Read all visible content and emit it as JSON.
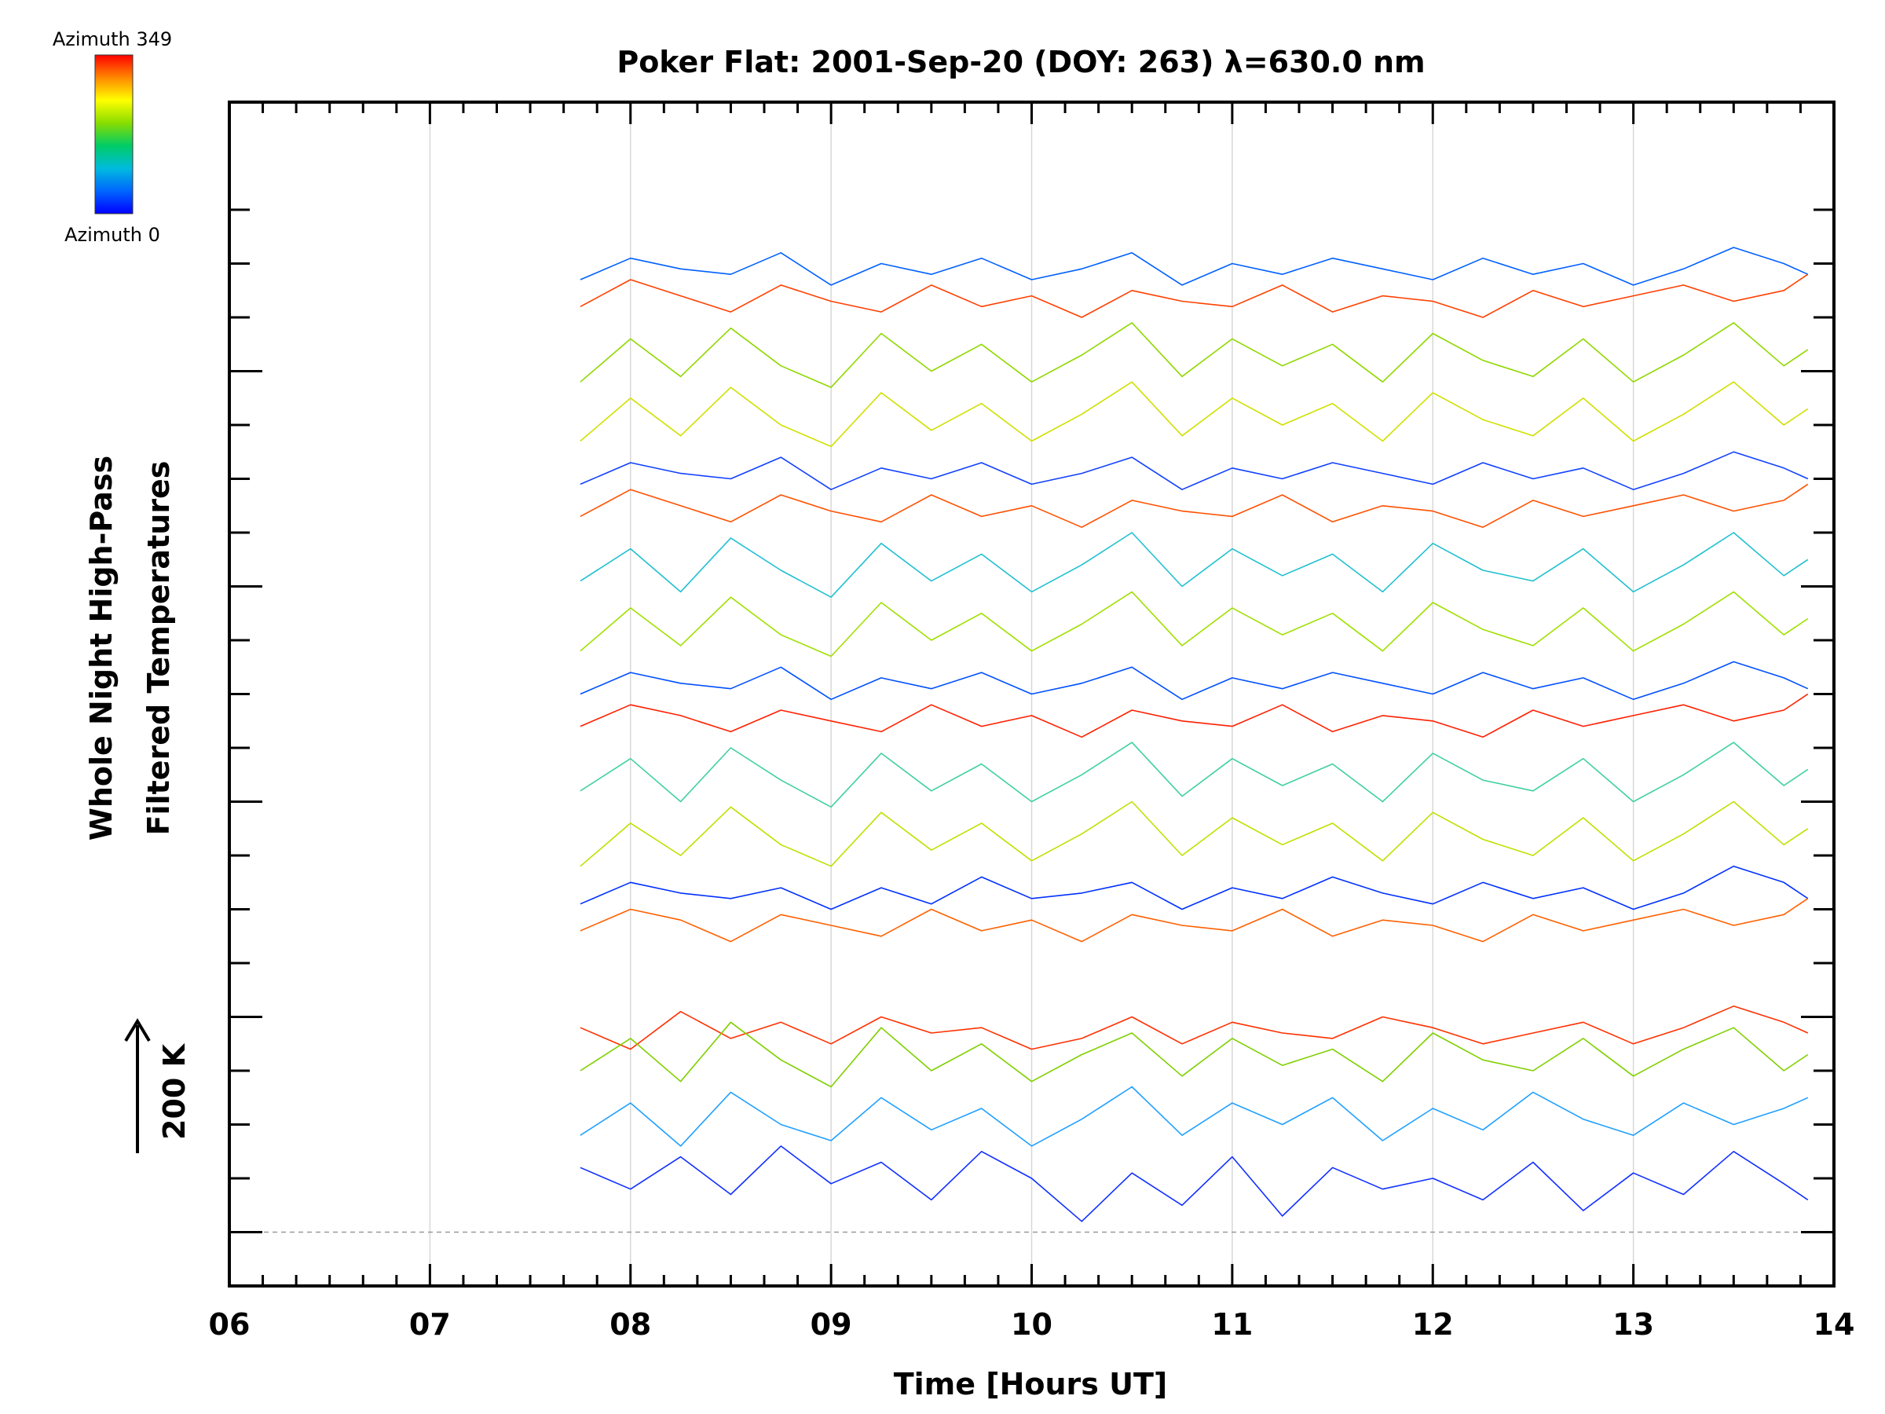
{
  "chart_data": {
    "type": "line",
    "title": "Poker Flat: 2001-Sep-20 (DOY: 263) λ=630.0 nm",
    "xlabel": "Time [Hours UT]",
    "ylabel_line1": "Whole Night High-Pass",
    "ylabel_line2": "Filtered Temperatures",
    "scale_label": "200 K",
    "colorbar": {
      "top_label": "Azimuth 349",
      "bottom_label": "Azimuth 0",
      "colors": [
        "#ff0000",
        "#ff8800",
        "#ffff00",
        "#88dd00",
        "#00cc66",
        "#00bbdd",
        "#0066ff",
        "#0000ff"
      ]
    },
    "xlim": [
      6,
      14
    ],
    "x_ticks": [
      "06",
      "07",
      "08",
      "09",
      "10",
      "11",
      "12",
      "13",
      "14"
    ],
    "grid": true,
    "series_note": "Stacked per-azimuth temperature traces, offset vertically; values are approximate readings.",
    "series": [
      {
        "color": "#1030ff",
        "x": [
          7.75,
          8.0,
          8.25,
          8.5,
          8.75,
          9.0,
          9.25,
          9.5,
          9.75,
          10.0,
          10.25,
          10.5,
          10.75,
          11.0,
          11.25,
          11.5,
          11.75,
          12.0,
          12.25,
          12.5,
          12.75,
          13.0,
          13.25,
          13.5,
          13.75,
          13.87
        ],
        "y": [
          120,
          80,
          140,
          70,
          160,
          90,
          130,
          60,
          150,
          100,
          20,
          110,
          50,
          140,
          30,
          120,
          80,
          100,
          60,
          130,
          40,
          110,
          70,
          150,
          90,
          60
        ]
      },
      {
        "color": "#20a0ff",
        "x": [
          7.75,
          8.0,
          8.25,
          8.5,
          8.75,
          9.0,
          9.25,
          9.5,
          9.75,
          10.0,
          10.25,
          10.5,
          10.75,
          11.0,
          11.25,
          11.5,
          11.75,
          12.0,
          12.25,
          12.5,
          12.75,
          13.0,
          13.25,
          13.5,
          13.75,
          13.87
        ],
        "y": [
          180,
          240,
          160,
          260,
          200,
          170,
          250,
          190,
          230,
          160,
          210,
          270,
          180,
          240,
          200,
          250,
          170,
          230,
          190,
          260,
          210,
          180,
          240,
          200,
          230,
          250
        ]
      },
      {
        "color": "#ff3000",
        "x": [
          7.75,
          8.0,
          8.25,
          8.5,
          8.75,
          9.0,
          9.25,
          9.5,
          9.75,
          10.0,
          10.25,
          10.5,
          10.75,
          11.0,
          11.25,
          11.5,
          11.75,
          12.0,
          12.25,
          12.5,
          12.75,
          13.0,
          13.25,
          13.5,
          13.75,
          13.87
        ],
        "y": [
          380,
          340,
          410,
          360,
          390,
          350,
          400,
          370,
          380,
          340,
          360,
          400,
          350,
          390,
          370,
          360,
          400,
          380,
          350,
          370,
          390,
          350,
          380,
          420,
          390,
          370
        ]
      },
      {
        "color": "#80d000",
        "x": [
          7.75,
          8.0,
          8.25,
          8.5,
          8.75,
          9.0,
          9.25,
          9.5,
          9.75,
          10.0,
          10.25,
          10.5,
          10.75,
          11.0,
          11.25,
          11.5,
          11.75,
          12.0,
          12.25,
          12.5,
          12.75,
          13.0,
          13.25,
          13.5,
          13.75,
          13.87
        ],
        "y": [
          300,
          360,
          280,
          390,
          320,
          270,
          380,
          300,
          350,
          280,
          330,
          370,
          290,
          360,
          310,
          340,
          280,
          370,
          320,
          300,
          360,
          290,
          340,
          380,
          300,
          330
        ]
      },
      {
        "color": "#0030ff",
        "x": [
          7.75,
          8.0,
          8.25,
          8.5,
          8.75,
          9.0,
          9.25,
          9.5,
          9.75,
          10.0,
          10.25,
          10.5,
          10.75,
          11.0,
          11.25,
          11.5,
          11.75,
          12.0,
          12.25,
          12.5,
          12.75,
          13.0,
          13.25,
          13.5,
          13.75,
          13.87
        ],
        "y": [
          610,
          650,
          630,
          620,
          640,
          600,
          640,
          610,
          660,
          620,
          630,
          650,
          600,
          640,
          620,
          660,
          630,
          610,
          650,
          620,
          640,
          600,
          630,
          680,
          650,
          620
        ]
      },
      {
        "color": "#ff6000",
        "x": [
          7.75,
          8.0,
          8.25,
          8.5,
          8.75,
          9.0,
          9.25,
          9.5,
          9.75,
          10.0,
          10.25,
          10.5,
          10.75,
          11.0,
          11.25,
          11.5,
          11.75,
          12.0,
          12.25,
          12.5,
          12.75,
          13.0,
          13.25,
          13.5,
          13.75,
          13.87
        ],
        "y": [
          560,
          600,
          580,
          540,
          590,
          570,
          550,
          600,
          560,
          580,
          540,
          590,
          570,
          560,
          600,
          550,
          580,
          570,
          540,
          590,
          560,
          580,
          600,
          570,
          590,
          620
        ]
      },
      {
        "color": "#c0e000",
        "x": [
          7.75,
          8.0,
          8.25,
          8.5,
          8.75,
          9.0,
          9.25,
          9.5,
          9.75,
          10.0,
          10.25,
          10.5,
          10.75,
          11.0,
          11.25,
          11.5,
          11.75,
          12.0,
          12.25,
          12.5,
          12.75,
          13.0,
          13.25,
          13.5,
          13.75,
          13.87
        ],
        "y": [
          680,
          760,
          700,
          790,
          720,
          680,
          780,
          710,
          760,
          690,
          740,
          800,
          700,
          770,
          720,
          760,
          690,
          780,
          730,
          700,
          770,
          690,
          740,
          800,
          720,
          750
        ]
      },
      {
        "color": "#40d0a0",
        "x": [
          7.75,
          8.0,
          8.25,
          8.5,
          8.75,
          9.0,
          9.25,
          9.5,
          9.75,
          10.0,
          10.25,
          10.5,
          10.75,
          11.0,
          11.25,
          11.5,
          11.75,
          12.0,
          12.25,
          12.5,
          12.75,
          13.0,
          13.25,
          13.5,
          13.75,
          13.87
        ],
        "y": [
          820,
          880,
          800,
          900,
          840,
          790,
          890,
          820,
          870,
          800,
          850,
          910,
          810,
          880,
          830,
          870,
          800,
          890,
          840,
          820,
          880,
          800,
          850,
          910,
          830,
          860
        ]
      },
      {
        "color": "#0050ff",
        "x": [
          7.75,
          8.0,
          8.25,
          8.5,
          8.75,
          9.0,
          9.25,
          9.5,
          9.75,
          10.0,
          10.25,
          10.5,
          10.75,
          11.0,
          11.25,
          11.5,
          11.75,
          12.0,
          12.25,
          12.5,
          12.75,
          13.0,
          13.25,
          13.5,
          13.75,
          13.87
        ],
        "y": [
          1000,
          1040,
          1020,
          1010,
          1050,
          990,
          1030,
          1010,
          1040,
          1000,
          1020,
          1050,
          990,
          1030,
          1010,
          1040,
          1020,
          1000,
          1040,
          1010,
          1030,
          990,
          1020,
          1060,
          1030,
          1010
        ]
      },
      {
        "color": "#ff2000",
        "x": [
          7.75,
          8.0,
          8.25,
          8.5,
          8.75,
          9.0,
          9.25,
          9.5,
          9.75,
          10.0,
          10.25,
          10.5,
          10.75,
          11.0,
          11.25,
          11.5,
          11.75,
          12.0,
          12.25,
          12.5,
          12.75,
          13.0,
          13.25,
          13.5,
          13.75,
          13.87
        ],
        "y": [
          940,
          980,
          960,
          930,
          970,
          950,
          930,
          980,
          940,
          960,
          920,
          970,
          950,
          940,
          980,
          930,
          960,
          950,
          920,
          970,
          940,
          960,
          980,
          950,
          970,
          1000
        ]
      },
      {
        "color": "#a0e000",
        "x": [
          7.75,
          8.0,
          8.25,
          8.5,
          8.75,
          9.0,
          9.25,
          9.5,
          9.75,
          10.0,
          10.25,
          10.5,
          10.75,
          11.0,
          11.25,
          11.5,
          11.75,
          12.0,
          12.25,
          12.5,
          12.75,
          13.0,
          13.25,
          13.5,
          13.75,
          13.87
        ],
        "y": [
          1080,
          1160,
          1090,
          1180,
          1110,
          1070,
          1170,
          1100,
          1150,
          1080,
          1130,
          1190,
          1090,
          1160,
          1110,
          1150,
          1080,
          1170,
          1120,
          1090,
          1160,
          1080,
          1130,
          1190,
          1110,
          1140
        ]
      },
      {
        "color": "#20c0d0",
        "x": [
          7.75,
          8.0,
          8.25,
          8.5,
          8.75,
          9.0,
          9.25,
          9.5,
          9.75,
          10.0,
          10.25,
          10.5,
          10.75,
          11.0,
          11.25,
          11.5,
          11.75,
          12.0,
          12.25,
          12.5,
          12.75,
          13.0,
          13.25,
          13.5,
          13.75,
          13.87
        ],
        "y": [
          1210,
          1270,
          1190,
          1290,
          1230,
          1180,
          1280,
          1210,
          1260,
          1190,
          1240,
          1300,
          1200,
          1270,
          1220,
          1260,
          1190,
          1280,
          1230,
          1210,
          1270,
          1190,
          1240,
          1300,
          1220,
          1250
        ]
      },
      {
        "color": "#1040ff",
        "x": [
          7.75,
          8.0,
          8.25,
          8.5,
          8.75,
          9.0,
          9.25,
          9.5,
          9.75,
          10.0,
          10.25,
          10.5,
          10.75,
          11.0,
          11.25,
          11.5,
          11.75,
          12.0,
          12.25,
          12.5,
          12.75,
          13.0,
          13.25,
          13.5,
          13.75,
          13.87
        ],
        "y": [
          1390,
          1430,
          1410,
          1400,
          1440,
          1380,
          1420,
          1400,
          1430,
          1390,
          1410,
          1440,
          1380,
          1420,
          1400,
          1430,
          1410,
          1390,
          1430,
          1400,
          1420,
          1380,
          1410,
          1450,
          1420,
          1400
        ]
      },
      {
        "color": "#ff5000",
        "x": [
          7.75,
          8.0,
          8.25,
          8.5,
          8.75,
          9.0,
          9.25,
          9.5,
          9.75,
          10.0,
          10.25,
          10.5,
          10.75,
          11.0,
          11.25,
          11.5,
          11.75,
          12.0,
          12.25,
          12.5,
          12.75,
          13.0,
          13.25,
          13.5,
          13.75,
          13.87
        ],
        "y": [
          1330,
          1380,
          1350,
          1320,
          1370,
          1340,
          1320,
          1370,
          1330,
          1350,
          1310,
          1360,
          1340,
          1330,
          1370,
          1320,
          1350,
          1340,
          1310,
          1360,
          1330,
          1350,
          1370,
          1340,
          1360,
          1390
        ]
      },
      {
        "color": "#d0e000",
        "x": [
          7.75,
          8.0,
          8.25,
          8.5,
          8.75,
          9.0,
          9.25,
          9.5,
          9.75,
          10.0,
          10.25,
          10.5,
          10.75,
          11.0,
          11.25,
          11.5,
          11.75,
          12.0,
          12.25,
          12.5,
          12.75,
          13.0,
          13.25,
          13.5,
          13.75,
          13.87
        ],
        "y": [
          1470,
          1550,
          1480,
          1570,
          1500,
          1460,
          1560,
          1490,
          1540,
          1470,
          1520,
          1580,
          1480,
          1550,
          1500,
          1540,
          1470,
          1560,
          1510,
          1480,
          1550,
          1470,
          1520,
          1580,
          1500,
          1530
        ]
      },
      {
        "color": "#0060ff",
        "x": [
          7.75,
          8.0,
          8.25,
          8.5,
          8.75,
          9.0,
          9.25,
          9.5,
          9.75,
          10.0,
          10.25,
          10.5,
          10.75,
          11.0,
          11.25,
          11.5,
          11.75,
          12.0,
          12.25,
          12.5,
          12.75,
          13.0,
          13.25,
          13.5,
          13.75,
          13.87
        ],
        "y": [
          1770,
          1810,
          1790,
          1780,
          1820,
          1760,
          1800,
          1780,
          1810,
          1770,
          1790,
          1820,
          1760,
          1800,
          1780,
          1810,
          1790,
          1770,
          1810,
          1780,
          1800,
          1760,
          1790,
          1830,
          1800,
          1780
        ]
      },
      {
        "color": "#ff4000",
        "x": [
          7.75,
          8.0,
          8.25,
          8.5,
          8.75,
          9.0,
          9.25,
          9.5,
          9.75,
          10.0,
          10.25,
          10.5,
          10.75,
          11.0,
          11.25,
          11.5,
          11.75,
          12.0,
          12.25,
          12.5,
          12.75,
          13.0,
          13.25,
          13.5,
          13.75,
          13.87
        ],
        "y": [
          1720,
          1770,
          1740,
          1710,
          1760,
          1730,
          1710,
          1760,
          1720,
          1740,
          1700,
          1750,
          1730,
          1720,
          1760,
          1710,
          1740,
          1730,
          1700,
          1750,
          1720,
          1740,
          1760,
          1730,
          1750,
          1780
        ]
      },
      {
        "color": "#90d800",
        "x": [
          7.75,
          8.0,
          8.25,
          8.5,
          8.75,
          9.0,
          9.25,
          9.5,
          9.75,
          10.0,
          10.25,
          10.5,
          10.75,
          11.0,
          11.25,
          11.5,
          11.75,
          12.0,
          12.25,
          12.5,
          12.75,
          13.0,
          13.25,
          13.5,
          13.75,
          13.87
        ],
        "y": [
          1580,
          1660,
          1590,
          1680,
          1610,
          1570,
          1670,
          1600,
          1650,
          1580,
          1630,
          1690,
          1590,
          1660,
          1610,
          1650,
          1580,
          1670,
          1620,
          1590,
          1660,
          1580,
          1630,
          1690,
          1610,
          1640
        ]
      }
    ]
  }
}
